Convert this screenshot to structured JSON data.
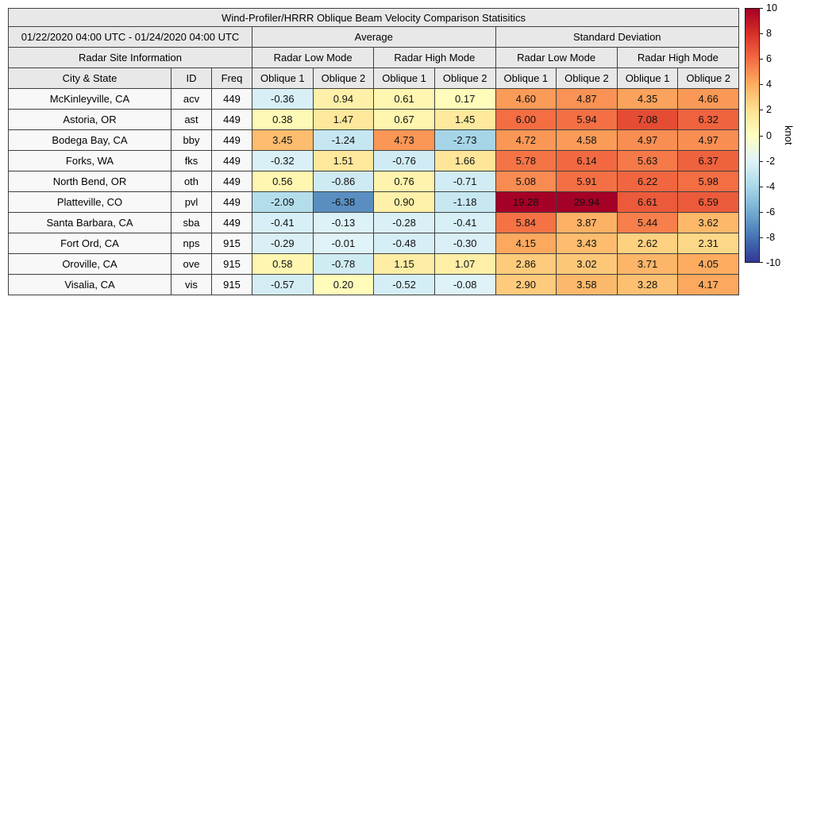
{
  "chart_data": {
    "type": "heatmap",
    "title": "Wind-Profiler/HRRR Oblique Beam Velocity Comparison Statisitics",
    "period": "01/22/2020 04:00 UTC - 01/24/2020 04:00 UTC",
    "site_info_header": "Radar Site Information",
    "stat_groups": [
      "Average",
      "Standard Deviation"
    ],
    "mode_groups": [
      "Radar Low Mode",
      "Radar High Mode",
      "Radar Low Mode",
      "Radar High Mode"
    ],
    "columns": [
      "City & State",
      "ID",
      "Freq",
      "Oblique 1",
      "Oblique 2",
      "Oblique 1",
      "Oblique 2",
      "Oblique 1",
      "Oblique 2",
      "Oblique 1",
      "Oblique 2"
    ],
    "rows": [
      {
        "city": "McKinleyville, CA",
        "id": "acv",
        "freq": "449",
        "values": [
          -0.36,
          0.94,
          0.61,
          0.17,
          4.6,
          4.87,
          4.35,
          4.66
        ]
      },
      {
        "city": "Astoria, OR",
        "id": "ast",
        "freq": "449",
        "values": [
          0.38,
          1.47,
          0.67,
          1.45,
          6.0,
          5.94,
          7.08,
          6.32
        ]
      },
      {
        "city": "Bodega Bay, CA",
        "id": "bby",
        "freq": "449",
        "values": [
          3.45,
          -1.24,
          4.73,
          -2.73,
          4.72,
          4.58,
          4.97,
          4.97
        ]
      },
      {
        "city": "Forks, WA",
        "id": "fks",
        "freq": "449",
        "values": [
          -0.32,
          1.51,
          -0.76,
          1.66,
          5.78,
          6.14,
          5.63,
          6.37
        ]
      },
      {
        "city": "North Bend, OR",
        "id": "oth",
        "freq": "449",
        "values": [
          0.56,
          -0.86,
          0.76,
          -0.71,
          5.08,
          5.91,
          6.22,
          5.98
        ]
      },
      {
        "city": "Platteville, CO",
        "id": "pvl",
        "freq": "449",
        "values": [
          -2.09,
          -6.38,
          0.9,
          -1.18,
          19.28,
          29.94,
          6.61,
          6.59
        ]
      },
      {
        "city": "Santa Barbara, CA",
        "id": "sba",
        "freq": "449",
        "values": [
          -0.41,
          -0.13,
          -0.28,
          -0.41,
          5.84,
          3.87,
          5.44,
          3.62
        ]
      },
      {
        "city": "Fort Ord, CA",
        "id": "nps",
        "freq": "915",
        "values": [
          -0.29,
          -0.01,
          -0.48,
          -0.3,
          4.15,
          3.43,
          2.62,
          2.31
        ]
      },
      {
        "city": "Oroville, CA",
        "id": "ove",
        "freq": "915",
        "values": [
          0.58,
          -0.78,
          1.15,
          1.07,
          2.86,
          3.02,
          3.71,
          4.05
        ]
      },
      {
        "city": "Visalia, CA",
        "id": "vis",
        "freq": "915",
        "values": [
          -0.57,
          0.2,
          -0.52,
          -0.08,
          2.9,
          3.58,
          3.28,
          4.17
        ]
      }
    ],
    "colorbar": {
      "label": "knot",
      "min": -10,
      "max": 10,
      "ticks": [
        10,
        8,
        6,
        4,
        2,
        0,
        -2,
        -4,
        -6,
        -8,
        -10
      ],
      "colors_top_to_bottom": [
        "#a50026",
        "#d73027",
        "#f46d43",
        "#fdae61",
        "#fee090",
        "#ffffbf",
        "#e0f3f8",
        "#abd9e9",
        "#74add1",
        "#4575b4",
        "#313695"
      ]
    },
    "colormap": {
      "positive_stops": [
        [
          0,
          "#ffffbf"
        ],
        [
          2,
          "#fee090"
        ],
        [
          4,
          "#fdae61"
        ],
        [
          6,
          "#f46d43"
        ],
        [
          8,
          "#d73027"
        ],
        [
          10,
          "#a50026"
        ]
      ],
      "negative_stops": [
        [
          -10,
          "#313695"
        ],
        [
          -7.5,
          "#4575b4"
        ],
        [
          -5,
          "#74add1"
        ],
        [
          -2.5,
          "#abd9e9"
        ],
        [
          0,
          "#e0f3f8"
        ]
      ]
    }
  }
}
